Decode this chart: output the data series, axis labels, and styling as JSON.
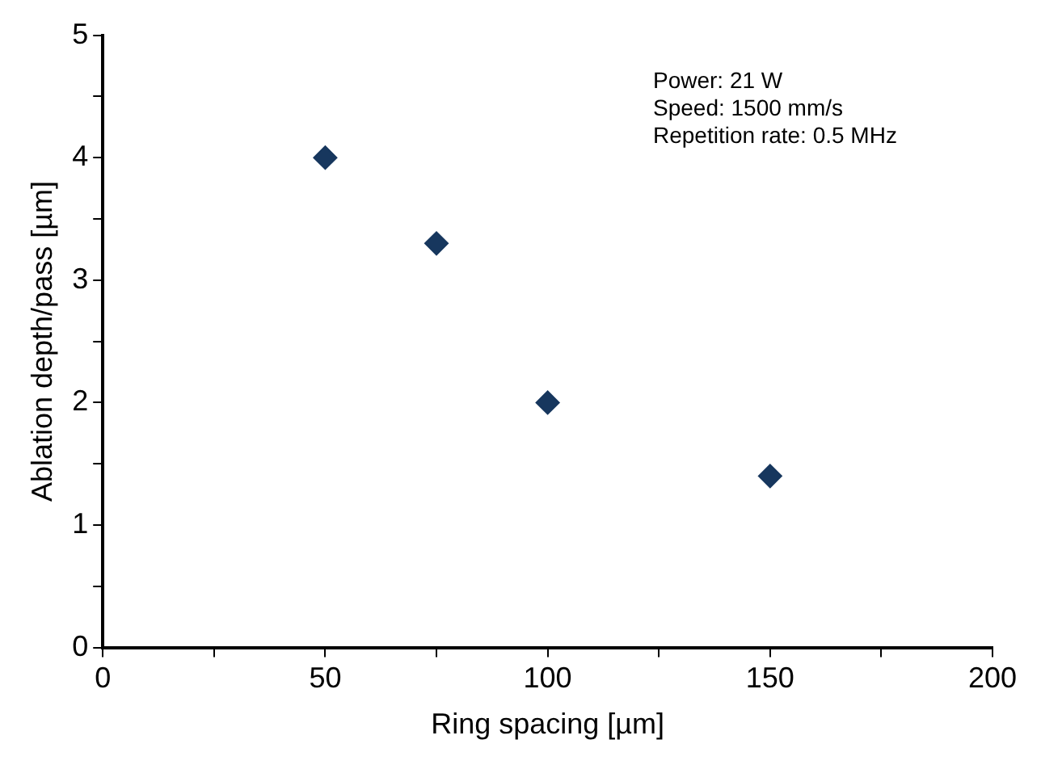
{
  "chart_data": {
    "type": "scatter",
    "xlabel": "Ring spacing [µm]",
    "ylabel": "Ablation depth/pass [µm]",
    "x": [
      50,
      75,
      100,
      150
    ],
    "series": [
      {
        "color": "#17375e",
        "values": [
          4.0,
          3.3,
          2.0,
          1.4
        ]
      }
    ],
    "xlim": [
      0,
      200
    ],
    "xticks": [
      0,
      {
        "value": 25,
        "label": null
      },
      50,
      {
        "value": 75,
        "label": null
      },
      100,
      {
        "value": 125,
        "label": null
      },
      150,
      {
        "value": 175,
        "label": null
      },
      200
    ],
    "ylim": [
      0,
      5
    ],
    "yticks": [
      0,
      {
        "value": 0.5,
        "label": null
      },
      1,
      {
        "value": 1.5,
        "label": null
      },
      2,
      {
        "value": 2.5,
        "label": null
      },
      3,
      {
        "value": 3.5,
        "label": null
      },
      4,
      {
        "value": 4.5,
        "label": null
      },
      5
    ],
    "annotations": [
      "Power: 21 W",
      "Speed: 1500 mm/s",
      "Repetition rate: 0.5 MHz"
    ],
    "marker": "diamond",
    "grid": false,
    "legend": false
  }
}
